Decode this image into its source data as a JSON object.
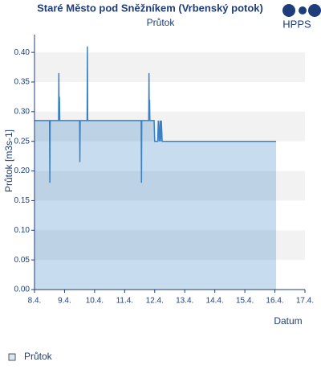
{
  "chart_data": {
    "type": "area",
    "title": "Staré Město pod Sněžníkem (Vrbenský potok)",
    "subtitle": "Průtok",
    "y_label": "Průtok [m3s-1]",
    "x_label": "Datum",
    "series": [
      {
        "name": "Průtok",
        "color": "#3a80c4",
        "x": [
          8.0,
          8.5,
          8.51,
          8.52,
          8.8,
          8.81,
          8.82,
          8.83,
          8.84,
          9.5,
          9.51,
          9.52,
          9.75,
          9.76,
          9.77,
          11.55,
          11.56,
          11.57,
          11.8,
          11.81,
          11.82,
          11.83,
          11.84,
          11.98,
          12.0,
          12.1,
          12.12,
          12.15,
          12.18,
          12.2,
          12.22,
          12.25,
          12.27,
          16.04
        ],
        "values": [
          0.285,
          0.285,
          0.18,
          0.285,
          0.285,
          0.365,
          0.285,
          0.325,
          0.285,
          0.285,
          0.215,
          0.285,
          0.285,
          0.41,
          0.285,
          0.285,
          0.18,
          0.285,
          0.285,
          0.365,
          0.285,
          0.32,
          0.285,
          0.285,
          0.25,
          0.25,
          0.285,
          0.25,
          0.285,
          0.25,
          0.285,
          0.25,
          0.25,
          0.25
        ]
      }
    ],
    "xlim": [
      8,
      17
    ],
    "xticks": [
      {
        "value": 8,
        "label": "8.4."
      },
      {
        "value": 9,
        "label": "9.4."
      },
      {
        "value": 10,
        "label": "10.4."
      },
      {
        "value": 11,
        "label": "11.4."
      },
      {
        "value": 12,
        "label": "12.4."
      },
      {
        "value": 13,
        "label": "13.4."
      },
      {
        "value": 14,
        "label": "14.4."
      },
      {
        "value": 15,
        "label": "15.4."
      },
      {
        "value": 16,
        "label": "16.4."
      },
      {
        "value": 17,
        "label": "17.4."
      }
    ],
    "ylim": [
      0,
      0.43
    ],
    "yticks": [
      {
        "value": 0,
        "label": "0.00"
      },
      {
        "value": 0.05,
        "label": "0.05"
      },
      {
        "value": 0.1,
        "label": "0.10"
      },
      {
        "value": 0.15,
        "label": "0.15"
      },
      {
        "value": 0.2,
        "label": "0.20"
      },
      {
        "value": 0.25,
        "label": "0.25"
      },
      {
        "value": 0.3,
        "label": "0.30"
      },
      {
        "value": 0.35,
        "label": "0.35"
      },
      {
        "value": 0.4,
        "label": "0.40"
      }
    ],
    "grid": true
  },
  "logo": "HPPS"
}
